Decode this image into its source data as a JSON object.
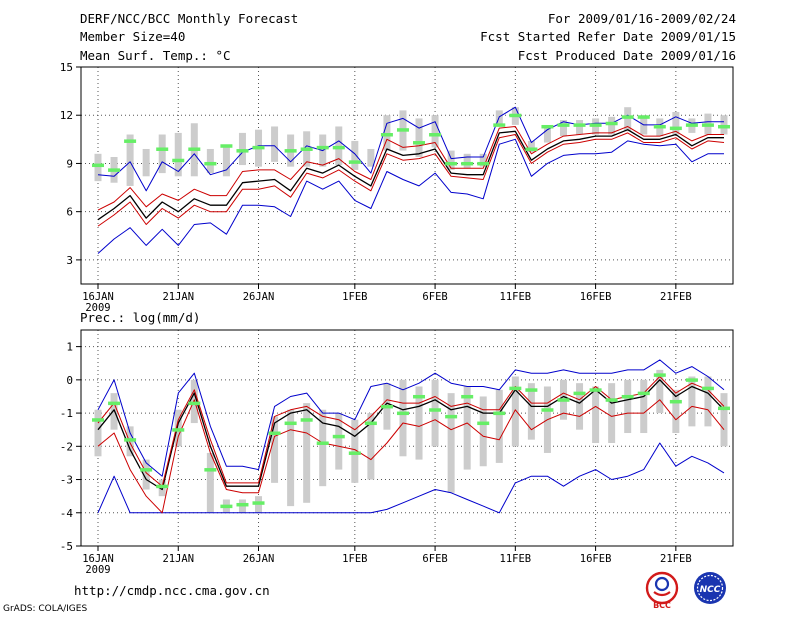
{
  "header": {
    "title": "DERF/NCC/BCC Monthly Forecast",
    "member_size": "Member Size=40",
    "variable": "Mean Surf. Temp.: °C",
    "forecast_period": "For 2009/01/16-2009/02/24",
    "start_date": "Fcst Started Refer Date 2009/01/15",
    "produced_date": "Fcst Produced Date 2009/01/16"
  },
  "footer": {
    "url": "http://cmdp.ncc.cma.gov.cn",
    "credit": "GrADS: COLA/IGES",
    "logos": [
      {
        "name": "BCC",
        "text": "BCC",
        "color": "#d21a1a"
      },
      {
        "name": "NCC",
        "text": "NCC",
        "color": "#1a35b0"
      }
    ]
  },
  "colors": {
    "envelope_outer": "#0000cc",
    "envelope_inner": "#cc0000",
    "mean": "#000000",
    "spread_bar": "#cccccc",
    "observation_mark": "#66ee66",
    "grid": "#555555"
  },
  "chart_data": [
    {
      "type": "line",
      "title": "Mean Surf. Temp.: °C",
      "x_tick_labels": [
        "16JAN",
        "21JAN",
        "26JAN",
        "1FEB",
        "6FEB",
        "11FEB",
        "16FEB",
        "21FEB"
      ],
      "x_tick_day_index": [
        0,
        5,
        10,
        16,
        21,
        26,
        31,
        36
      ],
      "x_year_label": "2009",
      "y_ticks": [
        3,
        6,
        9,
        12,
        15
      ],
      "ylim": [
        1.5,
        15
      ],
      "day_count": 40,
      "series": [
        {
          "name": "max",
          "values": [
            3.4,
            4.3,
            5.0,
            3.9,
            4.9,
            3.9,
            5.2,
            5.3,
            4.6,
            6.4,
            6.4,
            6.3,
            5.7,
            7.9,
            7.4,
            7.9,
            6.7,
            6.2,
            8.5,
            8.0,
            7.6,
            8.4,
            7.2,
            7.1,
            6.8,
            10.2,
            10.5,
            8.2,
            9.0,
            9.5,
            9.6,
            9.6,
            9.7,
            10.4,
            10.2,
            10.1,
            10.2,
            9.1,
            9.6,
            9.6
          ]
        },
        {
          "name": "p10",
          "values": [
            5.1,
            5.8,
            6.6,
            5.2,
            6.2,
            5.6,
            6.4,
            6.0,
            6.0,
            7.4,
            7.4,
            7.6,
            6.9,
            8.4,
            8.1,
            8.6,
            7.9,
            7.3,
            9.6,
            9.2,
            9.3,
            9.6,
            8.2,
            8.1,
            8.0,
            10.6,
            10.8,
            9.0,
            9.7,
            10.2,
            10.3,
            10.5,
            10.5,
            10.9,
            10.3,
            10.3,
            10.6,
            9.9,
            10.4,
            10.3
          ]
        },
        {
          "name": "mean",
          "values": [
            5.5,
            6.2,
            7.0,
            5.6,
            6.6,
            6.0,
            6.8,
            6.4,
            6.4,
            7.8,
            7.9,
            8.0,
            7.3,
            8.7,
            8.4,
            8.9,
            8.2,
            7.6,
            9.9,
            9.5,
            9.6,
            9.9,
            8.4,
            8.3,
            8.3,
            10.9,
            11.0,
            9.2,
            9.9,
            10.4,
            10.5,
            10.7,
            10.7,
            11.1,
            10.5,
            10.5,
            10.8,
            10.1,
            10.6,
            10.6
          ]
        },
        {
          "name": "p90",
          "values": [
            6.1,
            6.6,
            7.5,
            6.3,
            7.1,
            6.7,
            7.4,
            7.0,
            7.0,
            8.5,
            8.6,
            8.6,
            8.0,
            9.1,
            8.9,
            9.3,
            8.5,
            8.0,
            10.5,
            10.0,
            10.1,
            10.3,
            8.7,
            8.7,
            8.7,
            11.2,
            11.3,
            9.6,
            10.2,
            10.7,
            10.8,
            10.9,
            10.9,
            11.3,
            10.7,
            10.7,
            11.0,
            10.4,
            10.8,
            10.8
          ]
        },
        {
          "name": "min",
          "values": [
            8.3,
            8.2,
            9.1,
            7.3,
            9.1,
            8.5,
            9.6,
            8.3,
            8.6,
            9.7,
            10.1,
            10.1,
            9.1,
            10.1,
            9.8,
            10.4,
            9.6,
            8.4,
            11.5,
            11.8,
            11.2,
            11.6,
            9.3,
            9.4,
            9.4,
            11.9,
            12.5,
            10.3,
            11.1,
            11.6,
            11.4,
            11.5,
            11.5,
            12.0,
            11.4,
            11.4,
            11.9,
            11.5,
            11.6,
            11.6
          ]
        }
      ],
      "spread_low": [
        7.9,
        7.8,
        7.6,
        8.2,
        8.4,
        8.2,
        8.2,
        8.4,
        8.2,
        8.9,
        8.8,
        9.1,
        8.8,
        8.8,
        8.8,
        8.9,
        8.6,
        8.8,
        9.8,
        9.8,
        9.4,
        10.0,
        8.6,
        8.7,
        8.8,
        11.3,
        11.4,
        9.7,
        10.3,
        10.7,
        10.8,
        10.8,
        10.8,
        11.0,
        10.8,
        10.7,
        10.8,
        10.9,
        10.8,
        10.8
      ],
      "spread_high": [
        9.6,
        9.4,
        10.8,
        9.9,
        10.8,
        10.9,
        11.5,
        9.9,
        10.1,
        10.9,
        11.1,
        11.3,
        10.8,
        11.0,
        10.8,
        11.3,
        10.4,
        9.9,
        12.0,
        12.3,
        11.8,
        12.0,
        9.8,
        9.6,
        9.6,
        12.3,
        12.5,
        10.4,
        11.3,
        11.7,
        11.7,
        11.8,
        11.9,
        12.5,
        12.0,
        11.8,
        12.2,
        11.8,
        12.1,
        12.0
      ],
      "observation": [
        8.9,
        8.6,
        10.4,
        null,
        9.9,
        9.2,
        9.9,
        9.0,
        10.1,
        9.8,
        10.0,
        null,
        9.8,
        9.9,
        10.0,
        10.0,
        9.1,
        null,
        10.8,
        11.1,
        10.3,
        10.8,
        9.0,
        9.0,
        9.0,
        11.4,
        12.0,
        9.9,
        11.3,
        11.4,
        11.4,
        11.4,
        11.5,
        11.9,
        11.9,
        11.3,
        11.2,
        11.4,
        11.4,
        11.3
      ]
    },
    {
      "type": "line",
      "title": "Prec.: log(mm/d)",
      "x_tick_labels": [
        "16JAN",
        "21JAN",
        "26JAN",
        "1FEB",
        "6FEB",
        "11FEB",
        "16FEB",
        "21FEB"
      ],
      "x_tick_day_index": [
        0,
        5,
        10,
        16,
        21,
        26,
        31,
        36
      ],
      "x_year_label": "2009",
      "y_ticks": [
        -5,
        -4,
        -3,
        -2,
        -1,
        0,
        1
      ],
      "ylim": [
        -5,
        1.5
      ],
      "day_count": 40,
      "series": [
        {
          "name": "min",
          "values": [
            -4,
            -2.9,
            -4,
            -4,
            -4,
            -4,
            -4,
            -4,
            -4,
            -4,
            -4,
            -4,
            -4,
            -4,
            -4,
            -4,
            -4,
            -4,
            -3.9,
            -3.7,
            -3.5,
            -3.3,
            -3.4,
            -3.6,
            -3.8,
            -4,
            -3.1,
            -2.9,
            -2.9,
            -3.2,
            -2.9,
            -2.7,
            -3.0,
            -2.9,
            -2.7,
            -1.9,
            -2.6,
            -2.3,
            -2.5,
            -2.8
          ]
        },
        {
          "name": "p10",
          "values": [
            -2.0,
            -1.6,
            -2.7,
            -3.5,
            -4,
            -1.7,
            -0.6,
            -2.2,
            -3.3,
            -3.4,
            -3.4,
            -1.7,
            -1.5,
            -1.6,
            -1.9,
            -2.0,
            -2.1,
            -2.4,
            -1.9,
            -1.3,
            -1.4,
            -1.2,
            -1.5,
            -1.3,
            -1.7,
            -1.8,
            -0.9,
            -1.5,
            -1.2,
            -1.0,
            -1.1,
            -0.8,
            -1.1,
            -1.0,
            -1.0,
            -0.6,
            -1.2,
            -0.8,
            -0.9,
            -1.5
          ]
        },
        {
          "name": "mean",
          "values": [
            -1.5,
            -0.9,
            -2.1,
            -3.0,
            -3.3,
            -1.3,
            -0.4,
            -2.0,
            -3.2,
            -3.2,
            -3.2,
            -1.3,
            -1.0,
            -0.9,
            -1.3,
            -1.4,
            -1.7,
            -1.3,
            -0.7,
            -0.9,
            -0.8,
            -0.6,
            -0.9,
            -0.8,
            -1.0,
            -1.0,
            -0.3,
            -0.8,
            -0.8,
            -0.5,
            -0.7,
            -0.3,
            -0.7,
            -0.6,
            -0.5,
            0.0,
            -0.5,
            -0.2,
            -0.4,
            -0.9
          ]
        },
        {
          "name": "p90",
          "values": [
            -1.3,
            -0.7,
            -1.9,
            -2.8,
            -3.2,
            -1.2,
            -0.3,
            -1.8,
            -3.1,
            -3.1,
            -3.1,
            -1.1,
            -0.9,
            -0.8,
            -1.1,
            -1.2,
            -1.5,
            -1.1,
            -0.6,
            -0.7,
            -0.7,
            -0.5,
            -0.8,
            -0.7,
            -0.9,
            -0.9,
            -0.2,
            -0.7,
            -0.7,
            -0.4,
            -0.6,
            -0.2,
            -0.6,
            -0.5,
            -0.4,
            0.1,
            -0.4,
            -0.1,
            -0.3,
            -0.8
          ]
        },
        {
          "name": "max",
          "values": [
            -0.9,
            0.0,
            -1.6,
            -2.5,
            -2.9,
            -0.4,
            0.2,
            -1.4,
            -2.6,
            -2.6,
            -2.7,
            -0.8,
            -0.5,
            -0.4,
            -1.0,
            -1.0,
            -1.2,
            -0.2,
            -0.1,
            -0.3,
            -0.1,
            0.2,
            -0.1,
            -0.2,
            -0.2,
            -0.3,
            0.3,
            0.2,
            0.2,
            0.3,
            0.2,
            0.2,
            0.2,
            0.3,
            0.3,
            0.6,
            0.2,
            0.4,
            0.1,
            -0.3
          ]
        }
      ],
      "spread_low": [
        -2.3,
        -1.5,
        -2.3,
        -3.3,
        -3.5,
        -2.0,
        -1.3,
        -4.0,
        -4.0,
        -4.0,
        -4.0,
        -3.1,
        -3.8,
        -3.7,
        -3.2,
        -2.7,
        -3.1,
        -3.0,
        -1.5,
        -2.3,
        -2.4,
        -2.0,
        -3.4,
        -2.7,
        -2.6,
        -2.5,
        -2.0,
        -1.8,
        -2.2,
        -1.2,
        -1.5,
        -1.9,
        -1.9,
        -1.6,
        -1.6,
        -1.0,
        -1.6,
        -1.4,
        -1.4,
        -2.0
      ],
      "spread_high": [
        -0.9,
        -0.4,
        -1.4,
        -2.4,
        -3.0,
        -0.9,
        0.0,
        -2.2,
        -3.6,
        -3.6,
        -3.5,
        -1.1,
        -0.9,
        -0.7,
        -0.9,
        -1.0,
        -1.2,
        -1.0,
        -0.1,
        0.0,
        -0.2,
        0.0,
        -0.4,
        -0.2,
        -0.5,
        -0.3,
        0.1,
        -0.1,
        -0.2,
        0.0,
        -0.1,
        -0.2,
        -0.1,
        0.0,
        0.0,
        0.3,
        -0.3,
        0.1,
        0.1,
        -0.4
      ],
      "observation": [
        -1.2,
        -0.7,
        -1.8,
        -2.7,
        -3.2,
        -1.5,
        -0.7,
        -2.7,
        -3.8,
        -3.75,
        -3.7,
        -1.6,
        -1.3,
        -1.2,
        -1.9,
        -1.7,
        -2.2,
        -1.3,
        -0.8,
        -1.0,
        -0.5,
        -0.9,
        -1.1,
        -0.5,
        -1.3,
        -1.0,
        -0.25,
        -0.3,
        -0.9,
        -0.6,
        -0.4,
        -0.3,
        -0.6,
        -0.5,
        -0.4,
        0.15,
        -0.65,
        0.0,
        -0.25,
        -0.85
      ]
    }
  ]
}
